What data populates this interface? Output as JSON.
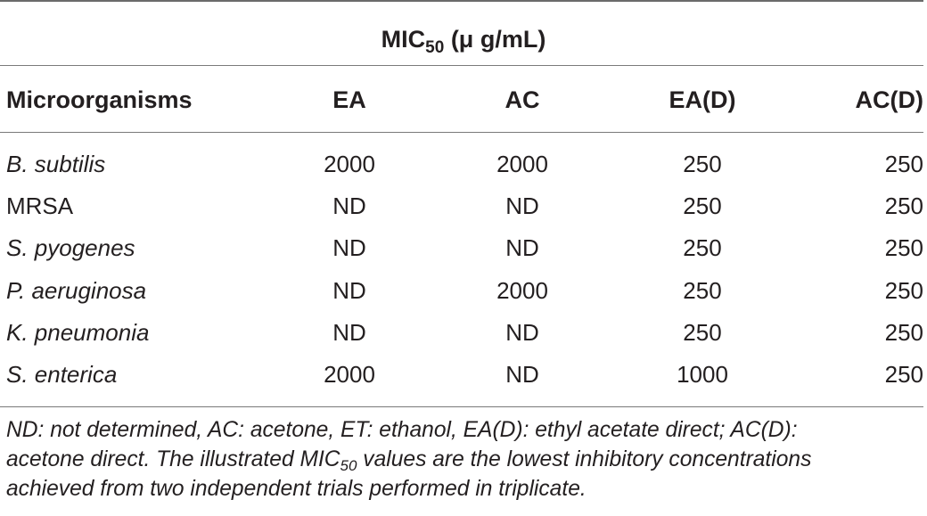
{
  "table": {
    "span_header": {
      "main": "MIC",
      "sub": "50",
      "rest": " (μ g/mL)"
    },
    "columns": [
      "Microorganisms",
      "EA",
      "AC",
      "EA(D)",
      "AC(D)"
    ],
    "rows": [
      {
        "organism": "B. subtilis",
        "italic": true,
        "values": [
          "2000",
          "2000",
          "250",
          "250"
        ]
      },
      {
        "organism": "MRSA",
        "italic": false,
        "values": [
          "ND",
          "ND",
          "250",
          "250"
        ]
      },
      {
        "organism": "S. pyogenes",
        "italic": true,
        "values": [
          "ND",
          "ND",
          "250",
          "250"
        ]
      },
      {
        "organism": "P. aeruginosa",
        "italic": true,
        "values": [
          "ND",
          "2000",
          "250",
          "250"
        ]
      },
      {
        "organism": "K. pneumonia",
        "italic": true,
        "values": [
          "ND",
          "ND",
          "250",
          "250"
        ]
      },
      {
        "organism": "S. enterica",
        "italic": true,
        "values": [
          "2000",
          "ND",
          "1000",
          "250"
        ]
      }
    ]
  },
  "footnote": {
    "line1": "ND: not determined, AC: acetone, ET: ethanol, EA(D): ethyl acetate direct; AC(D):",
    "line2_a": "acetone direct. The illustrated MIC",
    "line2_sub": "50",
    "line2_b": " values are the lowest inhibitory concentrations",
    "line3": "achieved from two independent trials performed in triplicate."
  },
  "colors": {
    "text": "#231f20",
    "rule": "#7a7a7a"
  }
}
